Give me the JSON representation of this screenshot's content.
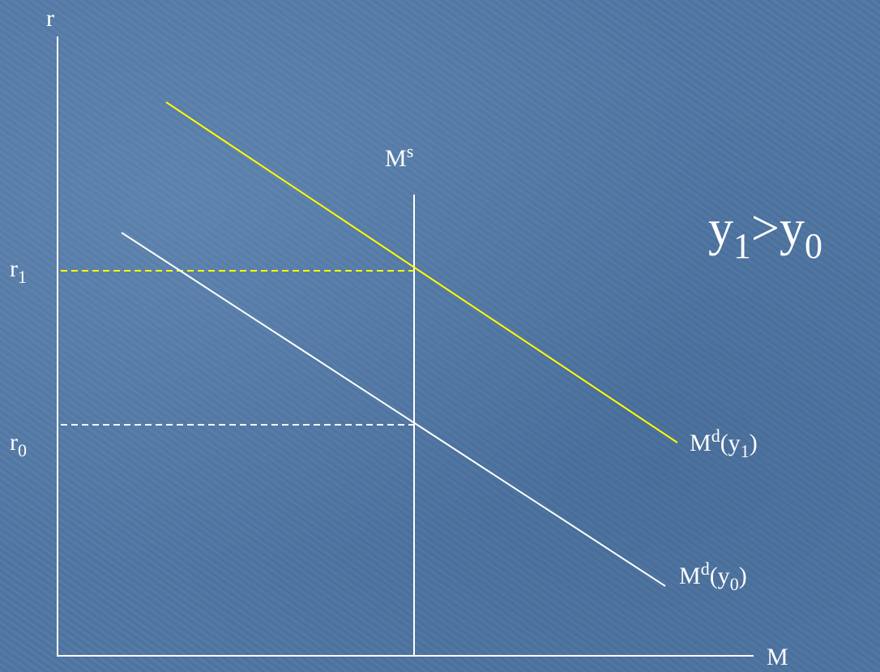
{
  "colors": {
    "background": "#4f76a3",
    "axis": "#ffffff",
    "demand_y0": "#ffffff",
    "demand_y1": "#ffff00",
    "guide_r1": "#ffff00",
    "guide_r0": "#ffffff"
  },
  "axes": {
    "y_label": "r",
    "x_label": "M"
  },
  "money_supply": {
    "base": "M",
    "superscript": "s"
  },
  "rate_labels": [
    {
      "base": "r",
      "sub": "1"
    },
    {
      "base": "r",
      "sub": "0"
    }
  ],
  "demand_curves": [
    {
      "base": "M",
      "sup": "d",
      "open": "(y",
      "sub": "1",
      "close": ")"
    },
    {
      "base": "M",
      "sup": "d",
      "open": "(y",
      "sub": "0",
      "close": ")"
    }
  ],
  "condition": {
    "left": "y",
    "left_sub": "1",
    "op": ">",
    "right": "y",
    "right_sub": "0"
  }
}
